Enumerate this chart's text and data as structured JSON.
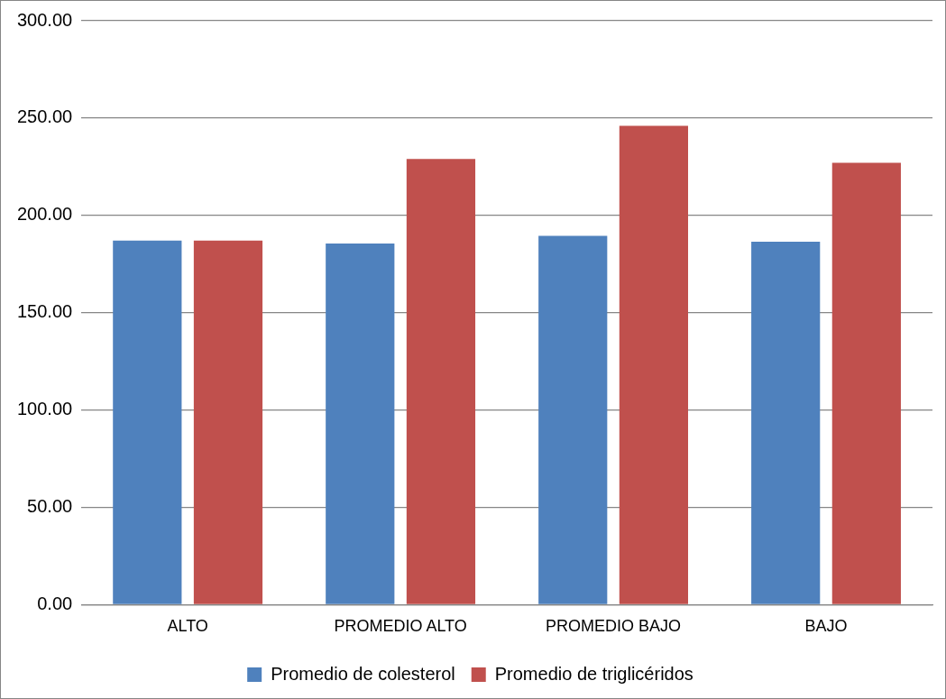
{
  "chart_data": {
    "type": "bar",
    "categories": [
      "ALTO",
      "PROMEDIO ALTO",
      "PROMEDIO BAJO",
      "BAJO"
    ],
    "series": [
      {
        "name": "Promedio de colesterol",
        "color": "#4f81bd",
        "values": [
          187,
          185.5,
          189.5,
          186.5
        ]
      },
      {
        "name": "Promedio de triglicéridos",
        "color": "#c0504d",
        "values": [
          187,
          229,
          246,
          227
        ]
      }
    ],
    "ylim": [
      0,
      300
    ],
    "yticks": [
      {
        "value": 0,
        "label": "0.00"
      },
      {
        "value": 50,
        "label": "50.00"
      },
      {
        "value": 100,
        "label": "100.00"
      },
      {
        "value": 150,
        "label": "150.00"
      },
      {
        "value": 200,
        "label": "200.00"
      },
      {
        "value": 250,
        "label": "250.00"
      },
      {
        "value": 300,
        "label": "300.00"
      }
    ],
    "grid": "y",
    "legend": "bottom"
  }
}
